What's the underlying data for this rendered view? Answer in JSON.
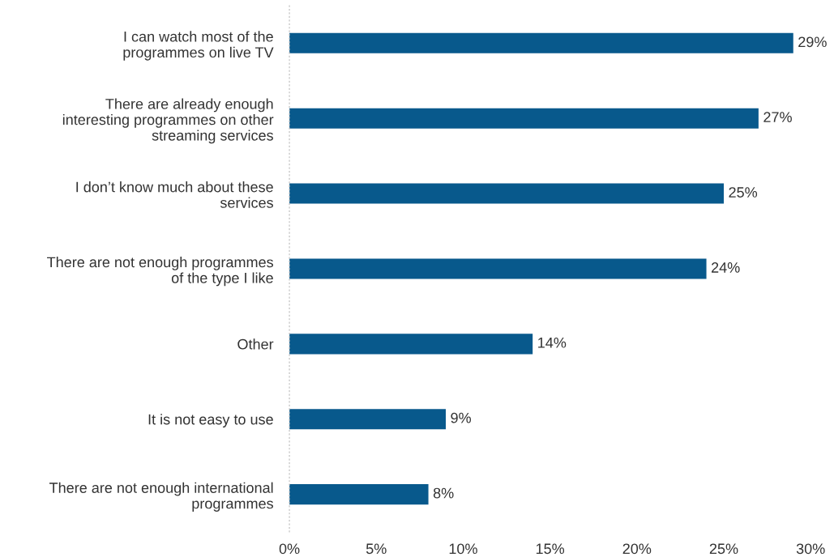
{
  "chart_data": {
    "type": "bar",
    "orientation": "horizontal",
    "categories": [
      "I can watch most of the\nprogrammes on live TV",
      "There are already enough\ninteresting programmes on other\nstreaming services",
      "I don’t know much about these\nservices",
      "There are not enough programmes\nof the type I like",
      "Other",
      "It is not easy to use",
      "There are not enough international\nprogrammes"
    ],
    "values": [
      29,
      27,
      25,
      24,
      14,
      9,
      8
    ],
    "value_labels": [
      "29%",
      "27%",
      "25%",
      "24%",
      "14%",
      "9%",
      "8%"
    ],
    "color": "#08598c",
    "xlim": [
      0,
      30
    ],
    "xticks": [
      {
        "value": 0,
        "label": "0%"
      },
      {
        "value": 5,
        "label": "5%"
      },
      {
        "value": 10,
        "label": "10%"
      },
      {
        "value": 15,
        "label": "15%"
      },
      {
        "value": 20,
        "label": "20%"
      },
      {
        "value": 25,
        "label": "25%"
      },
      {
        "value": 30,
        "label": "30%"
      }
    ],
    "grid": false
  }
}
